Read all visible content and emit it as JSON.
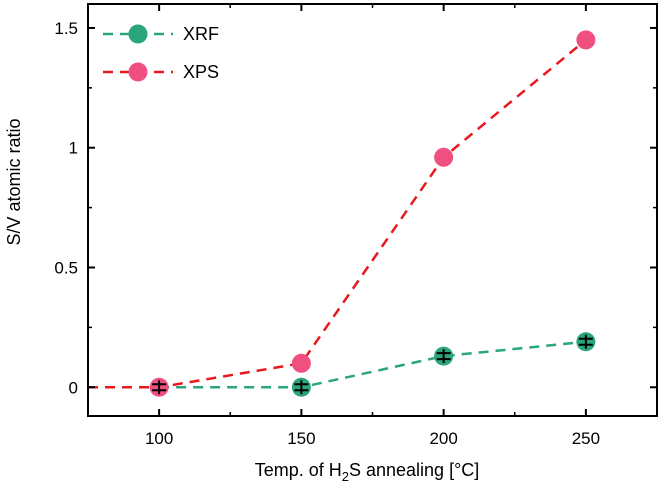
{
  "chart_data": {
    "type": "line",
    "title": "",
    "xlabel": "Temp. of H2S annealing [°C]",
    "xlabel_parts": {
      "prefix": "Temp. of H",
      "subscript": "2",
      "suffix": "S annealing [°C]"
    },
    "ylabel": "S/V atomic ratio",
    "xlim": [
      75,
      275
    ],
    "ylim": [
      -0.12,
      1.6
    ],
    "x_ticks": [
      100,
      150,
      200,
      250
    ],
    "x_tick_labels": [
      "100",
      "150",
      "200",
      "250"
    ],
    "y_ticks": [
      0,
      0.5,
      1,
      1.5
    ],
    "y_tick_labels": [
      "0",
      "0.5",
      "1",
      "1.5"
    ],
    "grid": false,
    "legend_position": "top-left",
    "series": [
      {
        "name": "XRF",
        "color": "#2aa67a",
        "line_style": "dashed",
        "x": [
          100,
          150,
          200,
          250
        ],
        "y": [
          0,
          0,
          0.13,
          0.19
        ],
        "error_bars": true,
        "line_start_x": 100
      },
      {
        "name": "XPS",
        "color": "#f0507f",
        "line_color": "#e8191c",
        "line_style": "dashed",
        "x": [
          100,
          150,
          200,
          250
        ],
        "y": [
          0,
          0.1,
          0.96,
          1.45
        ],
        "error_bars": false,
        "line_start_x": 75
      }
    ]
  }
}
